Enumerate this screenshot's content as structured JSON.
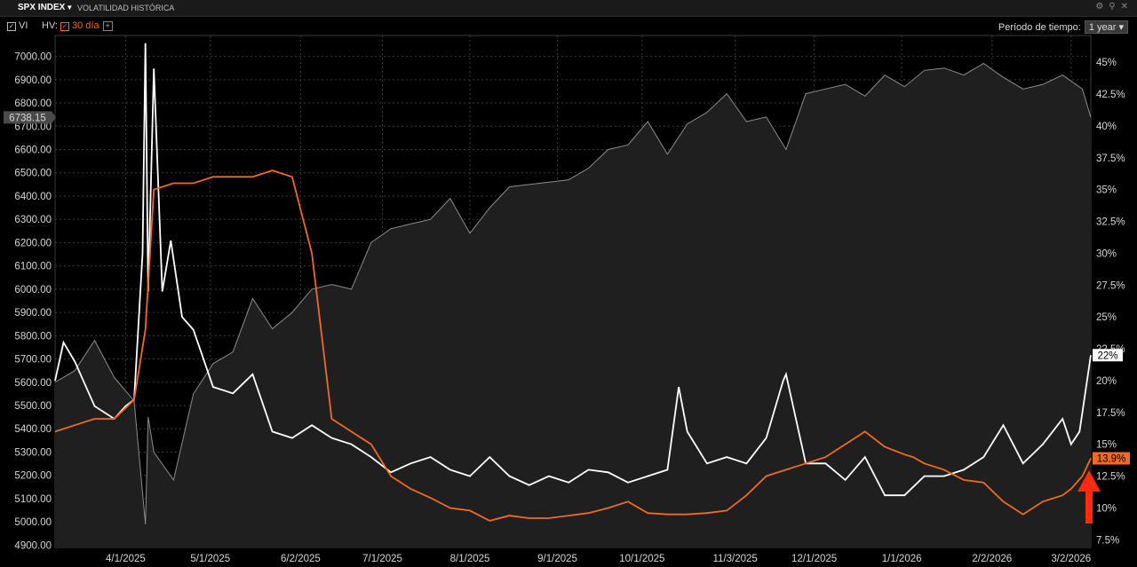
{
  "header": {
    "ticker": "SPX INDEX",
    "subtitle": "VOLATILIDAD HISTÓRICA"
  },
  "icons": [
    "gear-icon",
    "link-icon",
    "close-icon"
  ],
  "controls": {
    "vi_label": "VI",
    "hv_label": "HV:",
    "hv_window": "30 día",
    "period_label": "Período de tiempo:",
    "period_value": "1 year"
  },
  "colors": {
    "index": "#8c8c8c",
    "vi": "#ffffff",
    "hv": "#f26a21",
    "arrow": "#ff2a10",
    "background": "#000000"
  },
  "chart_data": {
    "type": "line",
    "x_ticks": [
      "4/1/2025",
      "5/1/2025",
      "6/2/2025",
      "7/1/2025",
      "8/1/2025",
      "9/1/2025",
      "10/1/2025",
      "11/3/2025",
      "12/1/2025",
      "1/1/2026",
      "2/2/2026",
      "3/2/2026"
    ],
    "left_axis": {
      "ticks": [
        "7000.00",
        "6900.00",
        "6800.00",
        "6700.00",
        "6600.00",
        "6500.00",
        "6400.00",
        "6300.00",
        "6200.00",
        "6100.00",
        "6000.00",
        "5900.00",
        "5800.00",
        "5700.00",
        "5600.00",
        "5500.00",
        "5400.00",
        "5300.00",
        "5200.00",
        "5100.00",
        "5000.00",
        "4900.00"
      ],
      "ylim": [
        4890,
        7090
      ]
    },
    "right_axis": {
      "ticks": [
        "45%",
        "42.5%",
        "40%",
        "37.5%",
        "35%",
        "32.5%",
        "30%",
        "27.5%",
        "25%",
        "22.5%",
        "20%",
        "17.5%",
        "15%",
        "12.5%",
        "10%",
        "7.5%"
      ],
      "ylim": [
        6.9,
        47.1
      ]
    },
    "last_values": {
      "index": "6738.15",
      "vi": "22%",
      "hv": "13.9%"
    },
    "series": [
      {
        "key": "index",
        "axis": "left",
        "area": true,
        "x": [
          "2025-03-07",
          "2025-03-14",
          "2025-03-21",
          "2025-03-28",
          "2025-04-04",
          "2025-04-08",
          "2025-04-09",
          "2025-04-11",
          "2025-04-18",
          "2025-04-25",
          "2025-05-02",
          "2025-05-09",
          "2025-05-16",
          "2025-05-23",
          "2025-05-30",
          "2025-06-06",
          "2025-06-13",
          "2025-06-20",
          "2025-06-27",
          "2025-07-04",
          "2025-07-11",
          "2025-07-18",
          "2025-07-25",
          "2025-08-01",
          "2025-08-08",
          "2025-08-15",
          "2025-08-22",
          "2025-08-29",
          "2025-09-05",
          "2025-09-12",
          "2025-09-19",
          "2025-09-26",
          "2025-10-03",
          "2025-10-10",
          "2025-10-17",
          "2025-10-24",
          "2025-10-31",
          "2025-11-07",
          "2025-11-14",
          "2025-11-21",
          "2025-11-28",
          "2025-12-05",
          "2025-12-12",
          "2025-12-19",
          "2025-12-26",
          "2026-01-02",
          "2026-01-09",
          "2026-01-16",
          "2026-01-23",
          "2026-01-30",
          "2026-02-06",
          "2026-02-13",
          "2026-02-20",
          "2026-02-27",
          "2026-03-06",
          "2026-03-09"
        ],
        "values": [
          5600,
          5650,
          5780,
          5620,
          5520,
          4990,
          5450,
          5300,
          5180,
          5550,
          5680,
          5730,
          5960,
          5830,
          5900,
          6000,
          6020,
          6000,
          6200,
          6260,
          6280,
          6300,
          6390,
          6240,
          6350,
          6440,
          6450,
          6460,
          6470,
          6520,
          6600,
          6620,
          6720,
          6580,
          6710,
          6760,
          6840,
          6720,
          6740,
          6600,
          6840,
          6860,
          6880,
          6830,
          6920,
          6870,
          6940,
          6950,
          6920,
          6970,
          6910,
          6860,
          6880,
          6920,
          6860,
          6738
        ]
      },
      {
        "key": "vi",
        "axis": "right",
        "x": [
          "2025-03-07",
          "2025-03-10",
          "2025-03-14",
          "2025-03-21",
          "2025-03-28",
          "2025-04-01",
          "2025-04-04",
          "2025-04-07",
          "2025-04-08",
          "2025-04-09",
          "2025-04-11",
          "2025-04-14",
          "2025-04-17",
          "2025-04-21",
          "2025-04-25",
          "2025-05-02",
          "2025-05-09",
          "2025-05-16",
          "2025-05-23",
          "2025-05-30",
          "2025-06-06",
          "2025-06-13",
          "2025-06-20",
          "2025-06-27",
          "2025-07-04",
          "2025-07-11",
          "2025-07-18",
          "2025-07-25",
          "2025-08-01",
          "2025-08-08",
          "2025-08-15",
          "2025-08-22",
          "2025-08-29",
          "2025-09-05",
          "2025-09-12",
          "2025-09-19",
          "2025-09-26",
          "2025-10-03",
          "2025-10-10",
          "2025-10-14",
          "2025-10-17",
          "2025-10-24",
          "2025-10-31",
          "2025-11-07",
          "2025-11-14",
          "2025-11-20",
          "2025-11-21",
          "2025-11-28",
          "2025-12-05",
          "2025-12-12",
          "2025-12-19",
          "2025-12-26",
          "2026-01-02",
          "2026-01-09",
          "2026-01-16",
          "2026-01-23",
          "2026-01-30",
          "2026-02-06",
          "2026-02-13",
          "2026-02-20",
          "2026-02-27",
          "2026-03-02",
          "2026-03-05",
          "2026-03-06",
          "2026-03-09"
        ],
        "values": [
          20,
          23,
          21.5,
          18,
          17,
          18,
          18.5,
          30,
          46.5,
          27,
          44.5,
          27,
          31,
          25,
          24,
          19.5,
          19,
          20.5,
          16,
          15.5,
          16.5,
          15.5,
          15,
          14,
          12.8,
          13.5,
          14,
          13,
          12.5,
          14,
          12.5,
          11.8,
          12.5,
          12,
          13,
          12.8,
          12,
          12.5,
          13,
          19.5,
          16,
          13.5,
          14,
          13.5,
          15.5,
          20,
          20.5,
          13.5,
          13.5,
          12.2,
          14,
          11,
          11,
          12.5,
          12.5,
          13,
          14,
          16.5,
          13.5,
          15,
          17,
          15,
          16,
          17.5,
          22
        ]
      },
      {
        "key": "hv",
        "axis": "right",
        "x": [
          "2025-03-07",
          "2025-03-14",
          "2025-03-21",
          "2025-03-28",
          "2025-04-04",
          "2025-04-08",
          "2025-04-11",
          "2025-04-18",
          "2025-04-25",
          "2025-05-02",
          "2025-05-09",
          "2025-05-16",
          "2025-05-23",
          "2025-05-30",
          "2025-06-06",
          "2025-06-13",
          "2025-06-20",
          "2025-06-27",
          "2025-07-04",
          "2025-07-11",
          "2025-07-18",
          "2025-07-25",
          "2025-08-01",
          "2025-08-08",
          "2025-08-15",
          "2025-08-22",
          "2025-08-29",
          "2025-09-05",
          "2025-09-12",
          "2025-09-19",
          "2025-09-26",
          "2025-10-03",
          "2025-10-10",
          "2025-10-17",
          "2025-10-24",
          "2025-10-31",
          "2025-11-07",
          "2025-11-14",
          "2025-11-21",
          "2025-11-28",
          "2025-12-05",
          "2025-12-12",
          "2025-12-19",
          "2025-12-26",
          "2026-01-02",
          "2026-01-05",
          "2026-01-09",
          "2026-01-16",
          "2026-01-23",
          "2026-01-30",
          "2026-02-06",
          "2026-02-13",
          "2026-02-20",
          "2026-02-27",
          "2026-03-02",
          "2026-03-06",
          "2026-03-09"
        ],
        "values": [
          16,
          16.5,
          17,
          17,
          18.5,
          24,
          35,
          35.5,
          35.5,
          36,
          36,
          36,
          36.5,
          36,
          30,
          17,
          16,
          15,
          12.5,
          11.5,
          10.8,
          10,
          9.8,
          9,
          9.4,
          9.2,
          9.2,
          9.4,
          9.6,
          10,
          10.5,
          9.6,
          9.5,
          9.5,
          9.6,
          9.8,
          11,
          12.5,
          13,
          13.5,
          14,
          15,
          16,
          14.8,
          14.2,
          14,
          13.5,
          13,
          12.2,
          12,
          10.5,
          9.5,
          10.5,
          11,
          11.5,
          12.5,
          13.9
        ]
      }
    ]
  }
}
